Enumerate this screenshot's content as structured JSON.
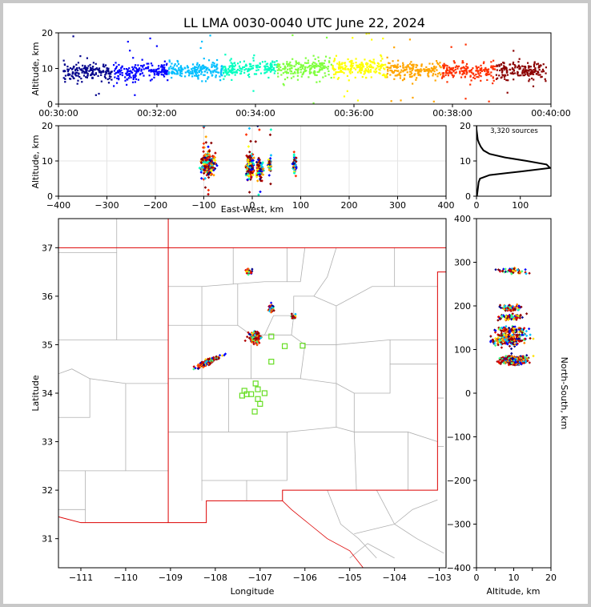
{
  "chart_data": [
    {
      "type": "scatter",
      "panel": "altitude-time",
      "title": "LL LMA 0030-0040 UTC June 22, 2024",
      "ylabel": "Altitude, km",
      "xlim": [
        "00:30:00",
        "00:40:00"
      ],
      "ylim": [
        0,
        20
      ],
      "xticks": [
        "00:30:00",
        "00:32:00",
        "00:34:00",
        "00:36:00",
        "00:38:00",
        "00:40:00"
      ],
      "yticks": [
        0,
        10,
        20
      ],
      "colormap": [
        "#00008b",
        "#0000ff",
        "#00bfff",
        "#00ffc0",
        "#80ff40",
        "#ffff00",
        "#ffa500",
        "#ff3000",
        "#8b0000"
      ],
      "series": [
        {
          "x_start_min": 0.1,
          "x_end_min": 1.6,
          "y_center": 9.0,
          "y_spread": 2.2,
          "count": 260
        },
        {
          "x_start_min": 1.6,
          "x_end_min": 3.4,
          "y_center": 9.5,
          "y_spread": 2.0,
          "count": 300
        },
        {
          "x_start_min": 3.4,
          "x_end_min": 5.0,
          "y_center": 10.0,
          "y_spread": 2.2,
          "count": 240
        },
        {
          "x_start_min": 5.0,
          "x_end_min": 6.6,
          "y_center": 10.3,
          "y_spread": 2.4,
          "count": 280
        },
        {
          "x_start_min": 6.6,
          "x_end_min": 8.4,
          "y_center": 9.5,
          "y_spread": 2.2,
          "count": 300
        },
        {
          "x_start_min": 8.4,
          "x_end_min": 9.9,
          "y_center": 9.3,
          "y_spread": 2.2,
          "count": 240
        }
      ]
    },
    {
      "type": "scatter",
      "panel": "altitude-east-west",
      "xlabel": "East-West, km",
      "ylabel": "Altitude, km",
      "xlim": [
        -400,
        400
      ],
      "ylim": [
        0,
        20
      ],
      "xticks": [
        -400,
        -300,
        -200,
        -100,
        0,
        100,
        200,
        300,
        400
      ],
      "yticks": [
        0,
        10,
        20
      ],
      "clusters": [
        {
          "x": -92,
          "x_spread": 12,
          "y": 9.0,
          "y_spread": 3.0,
          "count": 320
        },
        {
          "x": -5,
          "x_spread": 6,
          "y": 8.5,
          "y_spread": 3.4,
          "count": 180
        },
        {
          "x": 15,
          "x_spread": 6,
          "y": 7.5,
          "y_spread": 2.2,
          "count": 120
        },
        {
          "x": 36,
          "x_spread": 3,
          "y": 8.8,
          "y_spread": 1.5,
          "count": 50
        },
        {
          "x": 87,
          "x_spread": 3,
          "y": 9.0,
          "y_spread": 2.5,
          "count": 60
        }
      ]
    },
    {
      "type": "line",
      "panel": "altitude-histogram",
      "annotation": "3,320 sources",
      "xlim": [
        0,
        170
      ],
      "ylim": [
        0,
        20
      ],
      "xticks": [
        0,
        100
      ],
      "yticks": [
        0,
        10,
        20
      ],
      "altitude_km": [
        0,
        1,
        2,
        3,
        4,
        5,
        6,
        7,
        8,
        9,
        10,
        11,
        12,
        13,
        14,
        15,
        16,
        17,
        18,
        19,
        20
      ],
      "source_count": [
        1,
        2,
        3,
        4,
        5,
        8,
        30,
        100,
        168,
        160,
        115,
        65,
        30,
        16,
        10,
        6,
        3,
        2,
        1,
        0,
        0
      ]
    },
    {
      "type": "scatter",
      "panel": "plan-view",
      "xlabel": "Longitude",
      "ylabel": "Latitude",
      "xlim": [
        -111.5,
        -102.85
      ],
      "ylim": [
        30.4,
        37.6
      ],
      "xticks": [
        -111,
        -110,
        -109,
        -108,
        -107,
        -106,
        -105,
        -104,
        -103
      ],
      "yticks": [
        31,
        32,
        33,
        34,
        35,
        36,
        37
      ],
      "clusters": [
        {
          "lon": -108.15,
          "lat": 34.65,
          "lon_spread": 0.22,
          "lat_spread": 0.06,
          "count": 150,
          "diagonal": true
        },
        {
          "lon": -107.1,
          "lat": 35.15,
          "lon_spread": 0.1,
          "lat_spread": 0.1,
          "count": 140
        },
        {
          "lon": -107.25,
          "lat": 36.52,
          "lon_spread": 0.06,
          "lat_spread": 0.05,
          "count": 40
        },
        {
          "lon": -106.75,
          "lat": 35.75,
          "lon_spread": 0.05,
          "lat_spread": 0.07,
          "count": 40
        },
        {
          "lon": -106.25,
          "lat": 35.58,
          "lon_spread": 0.04,
          "lat_spread": 0.04,
          "count": 30
        }
      ],
      "stations": [
        {
          "lon": -107.35,
          "lat": 34.05
        },
        {
          "lon": -107.1,
          "lat": 34.2
        },
        {
          "lon": -107.05,
          "lat": 34.08
        },
        {
          "lon": -107.2,
          "lat": 33.98
        },
        {
          "lon": -107.05,
          "lat": 33.88
        },
        {
          "lon": -106.9,
          "lat": 34.0
        },
        {
          "lon": -107.12,
          "lat": 33.62
        },
        {
          "lon": -107.3,
          "lat": 33.98
        },
        {
          "lon": -106.75,
          "lat": 34.65
        },
        {
          "lon": -106.75,
          "lat": 35.17
        },
        {
          "lon": -106.45,
          "lat": 34.97
        },
        {
          "lon": -106.05,
          "lat": 34.98
        },
        {
          "lon": -107.0,
          "lat": 33.78
        },
        {
          "lon": -107.4,
          "lat": 33.95
        }
      ],
      "station_color": "#66dd22",
      "state_border_color": "#dd0000",
      "county_border_color": "#b0b0b0"
    },
    {
      "type": "scatter",
      "panel": "north-south-altitude",
      "xlabel": "Altitude, km",
      "ylabel": "North-South, km",
      "xlim": [
        0,
        20
      ],
      "ylim": [
        -400,
        400
      ],
      "xticks": [
        0,
        5,
        10,
        15,
        20
      ],
      "yticks": [
        -400,
        -300,
        -200,
        -100,
        0,
        100,
        200,
        300,
        400
      ],
      "clusters": [
        {
          "alt": 10.0,
          "alt_spread": 3.5,
          "ns": 75,
          "ns_spread": 8,
          "count": 360
        },
        {
          "alt": 9.0,
          "alt_spread": 4.5,
          "ns": 125,
          "ns_spread": 12,
          "count": 220
        },
        {
          "alt": 9.0,
          "alt_spread": 4.0,
          "ns": 145,
          "ns_spread": 5,
          "count": 100
        },
        {
          "alt": 9.0,
          "alt_spread": 3.5,
          "ns": 175,
          "ns_spread": 6,
          "count": 70
        },
        {
          "alt": 9.0,
          "alt_spread": 2.5,
          "ns": 195,
          "ns_spread": 6,
          "count": 70
        },
        {
          "alt": 10.0,
          "alt_spread": 4.0,
          "ns": 280,
          "ns_spread": 5,
          "count": 50
        }
      ]
    }
  ]
}
